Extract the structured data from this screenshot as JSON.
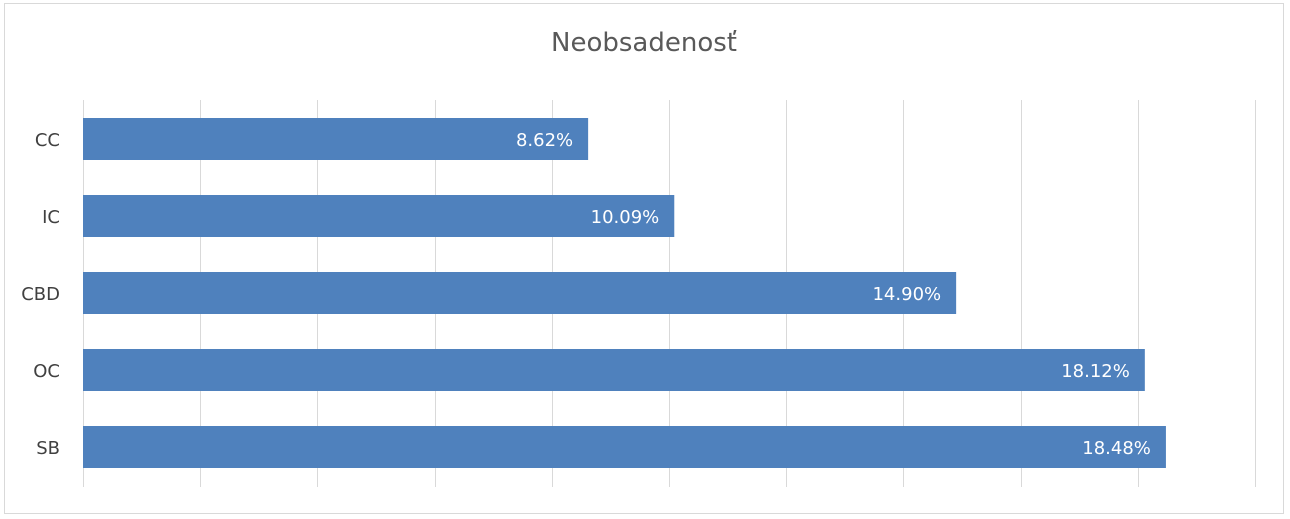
{
  "chart_data": {
    "type": "bar",
    "orientation": "horizontal",
    "title": "Neobsadenosť",
    "categories": [
      "CC",
      "IC",
      "CBD",
      "OC",
      "SB"
    ],
    "values": [
      8.62,
      10.09,
      14.9,
      18.12,
      18.48
    ],
    "data_labels": [
      "8.62%",
      "10.09%",
      "14.90%",
      "18.12%",
      "18.48%"
    ],
    "xlim": [
      0,
      20
    ],
    "grid": true,
    "bar_color": "#4F81BD",
    "gridline_color": "#d9d9d9"
  }
}
